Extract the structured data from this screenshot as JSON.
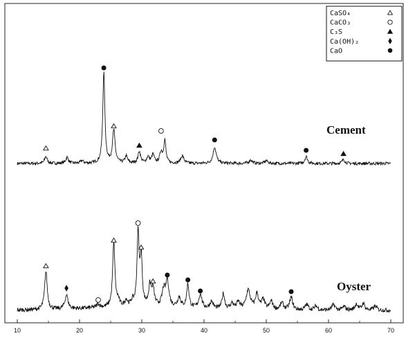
{
  "chart_data": {
    "type": "line",
    "xlim": [
      8,
      72
    ],
    "x_ticks": [
      10,
      20,
      30,
      40,
      50,
      60,
      70
    ],
    "x_tick_labels": [
      "10",
      "20",
      "30",
      "40",
      "50",
      "60",
      "70"
    ],
    "xlabel": "",
    "ylabel": "",
    "grid": false,
    "legend_placement": "top-right",
    "legend": [
      {
        "label": "CaSO₄",
        "marker": "open-triangle"
      },
      {
        "label": "CaCO₃",
        "marker": "open-circle"
      },
      {
        "label": "C₃S",
        "marker": "filled-triangle"
      },
      {
        "label": "Ca(OH)₂",
        "marker": "filled-diamond"
      },
      {
        "label": "CaO",
        "marker": "filled-circle"
      }
    ],
    "series": [
      {
        "name": "Cement",
        "x_range": [
          10,
          70
        ],
        "baseline": 0,
        "peaks": [
          {
            "x": 14.6,
            "y": 10,
            "w": 0.25
          },
          {
            "x": 18.0,
            "y": 9,
            "w": 0.25
          },
          {
            "x": 20.4,
            "y": 4,
            "w": 0.25
          },
          {
            "x": 23.9,
            "y": 131,
            "w": 0.2
          },
          {
            "x": 25.5,
            "y": 47,
            "w": 0.25
          },
          {
            "x": 27.5,
            "y": 10,
            "w": 0.25
          },
          {
            "x": 29.6,
            "y": 17,
            "w": 0.25
          },
          {
            "x": 31.0,
            "y": 9,
            "w": 0.25
          },
          {
            "x": 31.8,
            "y": 12,
            "w": 0.25
          },
          {
            "x": 33.1,
            "y": 16,
            "w": 0.25
          },
          {
            "x": 33.7,
            "y": 33,
            "w": 0.2
          },
          {
            "x": 36.5,
            "y": 11,
            "w": 0.3
          },
          {
            "x": 41.7,
            "y": 24,
            "w": 0.3
          },
          {
            "x": 47.5,
            "y": 5,
            "w": 0.3
          },
          {
            "x": 50.0,
            "y": 4,
            "w": 0.3
          },
          {
            "x": 56.4,
            "y": 10,
            "w": 0.25
          },
          {
            "x": 62.4,
            "y": 6,
            "w": 0.25
          }
        ],
        "markers": [
          {
            "x": 14.6,
            "y": 22,
            "type": "open-triangle"
          },
          {
            "x": 23.9,
            "y": 138,
            "type": "filled-circle"
          },
          {
            "x": 25.5,
            "y": 54,
            "type": "open-triangle"
          },
          {
            "x": 29.6,
            "y": 26,
            "type": "filled-triangle"
          },
          {
            "x": 33.1,
            "y": 47,
            "type": "open-circle"
          },
          {
            "x": 41.7,
            "y": 34,
            "type": "filled-circle"
          },
          {
            "x": 56.4,
            "y": 19,
            "type": "filled-circle"
          },
          {
            "x": 62.4,
            "y": 14,
            "type": "filled-triangle"
          }
        ]
      },
      {
        "name": "Oyster",
        "x_range": [
          10,
          70
        ],
        "baseline": 0,
        "peaks": [
          {
            "x": 14.6,
            "y": 55,
            "w": 0.25
          },
          {
            "x": 17.9,
            "y": 20,
            "w": 0.3
          },
          {
            "x": 23.0,
            "y": 5,
            "w": 0.3
          },
          {
            "x": 25.5,
            "y": 93,
            "w": 0.22
          },
          {
            "x": 26.2,
            "y": 8,
            "w": 0.25
          },
          {
            "x": 27.5,
            "y": 9,
            "w": 0.25
          },
          {
            "x": 28.5,
            "y": 7,
            "w": 0.25
          },
          {
            "x": 29.4,
            "y": 104,
            "w": 0.2
          },
          {
            "x": 29.9,
            "y": 70,
            "w": 0.2
          },
          {
            "x": 31.3,
            "y": 28,
            "w": 0.25
          },
          {
            "x": 31.8,
            "y": 24,
            "w": 0.25
          },
          {
            "x": 33.5,
            "y": 22,
            "w": 0.3
          },
          {
            "x": 34.1,
            "y": 37,
            "w": 0.3
          },
          {
            "x": 36.0,
            "y": 14,
            "w": 0.3
          },
          {
            "x": 37.4,
            "y": 34,
            "w": 0.22
          },
          {
            "x": 39.4,
            "y": 20,
            "w": 0.3
          },
          {
            "x": 41.2,
            "y": 10,
            "w": 0.3
          },
          {
            "x": 43.1,
            "y": 22,
            "w": 0.25
          },
          {
            "x": 44.5,
            "y": 8,
            "w": 0.3
          },
          {
            "x": 45.5,
            "y": 10,
            "w": 0.3
          },
          {
            "x": 47.1,
            "y": 28,
            "w": 0.4
          },
          {
            "x": 48.5,
            "y": 22,
            "w": 0.3
          },
          {
            "x": 49.5,
            "y": 14,
            "w": 0.3
          },
          {
            "x": 50.8,
            "y": 12,
            "w": 0.3
          },
          {
            "x": 52.5,
            "y": 10,
            "w": 0.3
          },
          {
            "x": 54.0,
            "y": 18,
            "w": 0.3
          },
          {
            "x": 56.5,
            "y": 8,
            "w": 0.3
          },
          {
            "x": 58.0,
            "y": 6,
            "w": 0.3
          },
          {
            "x": 60.8,
            "y": 8,
            "w": 0.3
          },
          {
            "x": 62.5,
            "y": 5,
            "w": 0.3
          },
          {
            "x": 64.5,
            "y": 9,
            "w": 0.3
          },
          {
            "x": 65.6,
            "y": 10,
            "w": 0.25
          },
          {
            "x": 67.5,
            "y": 6,
            "w": 0.3
          }
        ],
        "markers": [
          {
            "x": 14.6,
            "y": 64,
            "type": "open-triangle"
          },
          {
            "x": 17.9,
            "y": 32,
            "type": "filled-diamond"
          },
          {
            "x": 23.0,
            "y": 15,
            "type": "open-circle"
          },
          {
            "x": 25.5,
            "y": 101,
            "type": "open-triangle"
          },
          {
            "x": 29.4,
            "y": 126,
            "type": "open-circle"
          },
          {
            "x": 29.9,
            "y": 91,
            "type": "open-triangle"
          },
          {
            "x": 31.8,
            "y": 42,
            "type": "open-triangle"
          },
          {
            "x": 34.1,
            "y": 51,
            "type": "filled-circle"
          },
          {
            "x": 37.4,
            "y": 44,
            "type": "filled-circle"
          },
          {
            "x": 39.4,
            "y": 28,
            "type": "filled-circle"
          },
          {
            "x": 54.0,
            "y": 27,
            "type": "filled-circle"
          }
        ]
      }
    ]
  }
}
